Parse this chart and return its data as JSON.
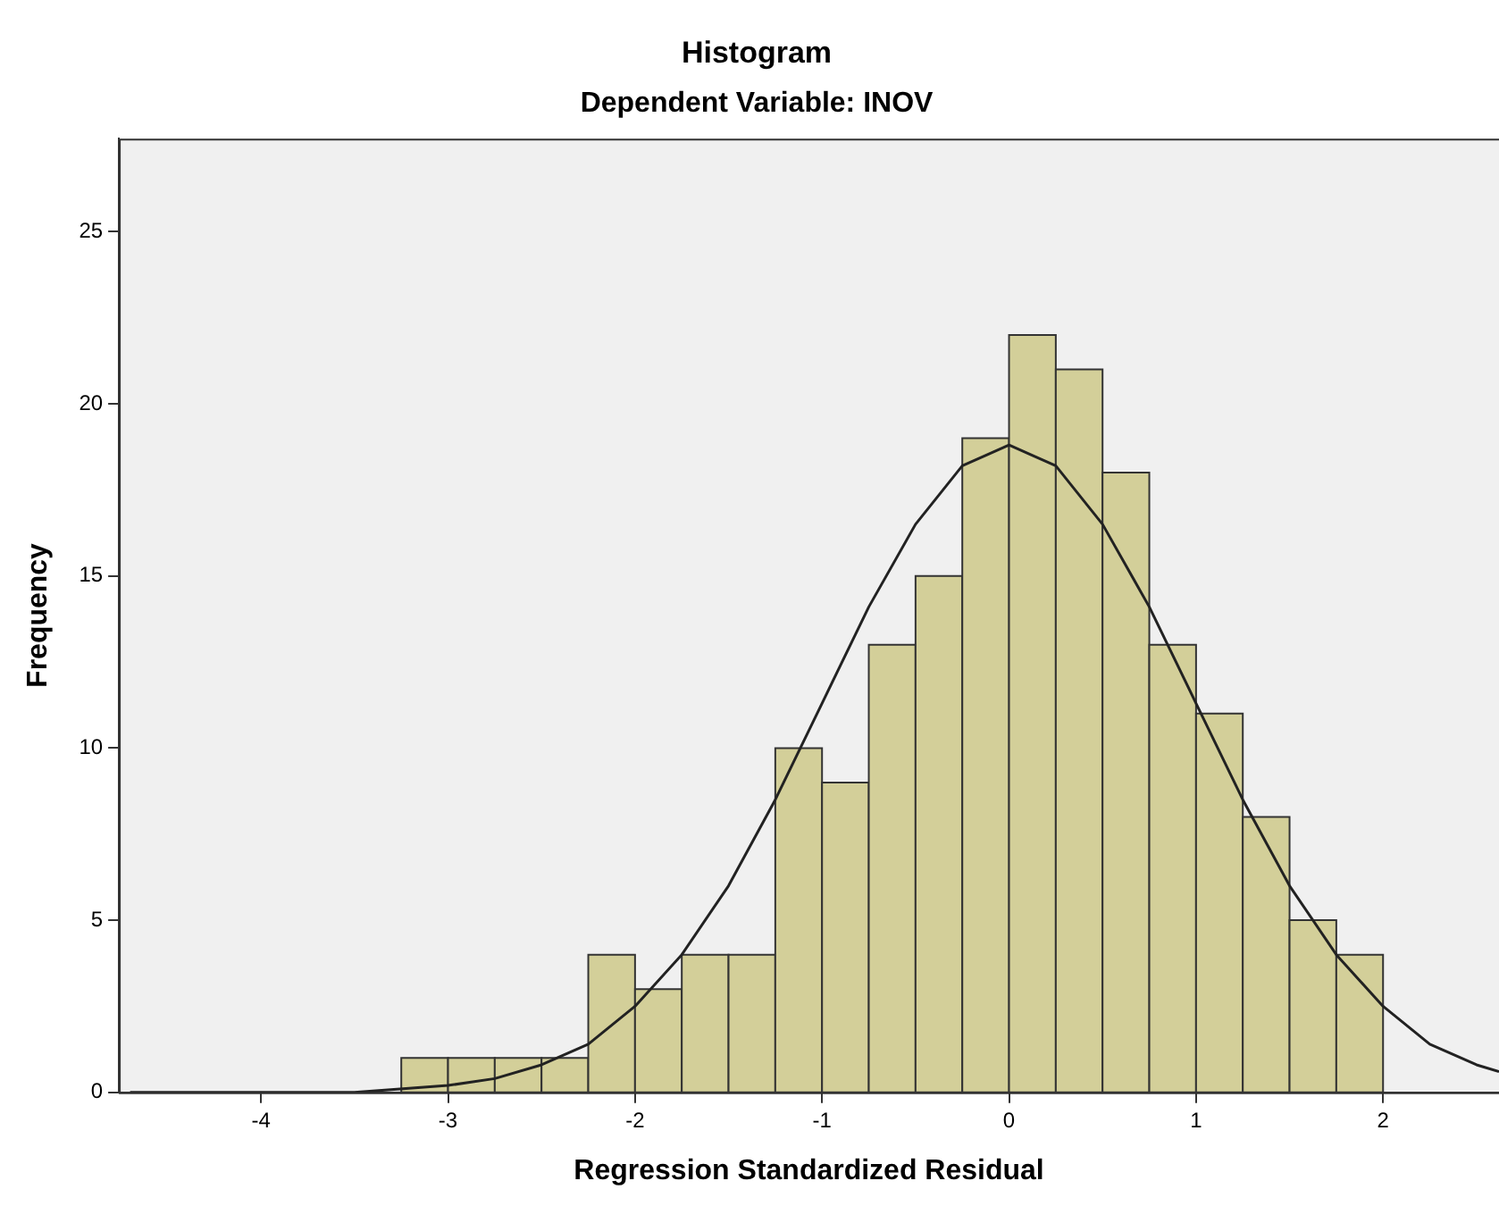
{
  "chart_data": {
    "type": "histogram",
    "title": "Histogram",
    "subtitle": "Dependent Variable: INOV",
    "xlabel": "Regression Standardized Residual",
    "ylabel": "Frequency",
    "bins": [
      -3.25,
      -3,
      -2.75,
      -2.5,
      -2.25,
      -2,
      -1.75,
      -1.5,
      -1.25,
      -1,
      -0.75,
      -0.5,
      -0.25,
      0,
      0.25,
      0.5,
      0.75,
      1,
      1.25,
      1.5,
      1.75,
      2
    ],
    "values": [
      1,
      1,
      1,
      1,
      4,
      3,
      4,
      4,
      10,
      9,
      13,
      15,
      19,
      22,
      21,
      18,
      13,
      11,
      8,
      5,
      4
    ],
    "color": "#d3cf99",
    "series": [
      {
        "type": "line",
        "color": "#222222",
        "x": [
          -4.7,
          -4,
          -3.5,
          -3,
          -2.75,
          -2.5,
          -2.25,
          -2,
          -1.75,
          -1.5,
          -1.25,
          -1,
          -0.75,
          -0.5,
          -0.25,
          0,
          0.25,
          0.5,
          0.75,
          1,
          1.25,
          1.5,
          1.75,
          2,
          2.25,
          2.5,
          2.62
        ],
        "values": [
          0,
          0,
          0,
          0.2,
          0.4,
          0.8,
          1.4,
          2.5,
          4,
          6,
          8.5,
          11.3,
          14.1,
          16.5,
          18.2,
          18.8,
          18.2,
          16.5,
          14.1,
          11.3,
          8.5,
          6,
          4,
          2.5,
          1.4,
          0.8,
          0.6
        ]
      }
    ],
    "marker": "none",
    "line_style": "solid",
    "xlim": [
      -4.76,
      2.62
    ],
    "xticks": [
      -4,
      -3,
      -2,
      -1,
      0,
      1,
      2
    ],
    "ylim": [
      0,
      27.7
    ],
    "yticks": [
      0,
      5,
      10,
      15,
      20,
      25
    ],
    "grid": false,
    "legend": false
  }
}
